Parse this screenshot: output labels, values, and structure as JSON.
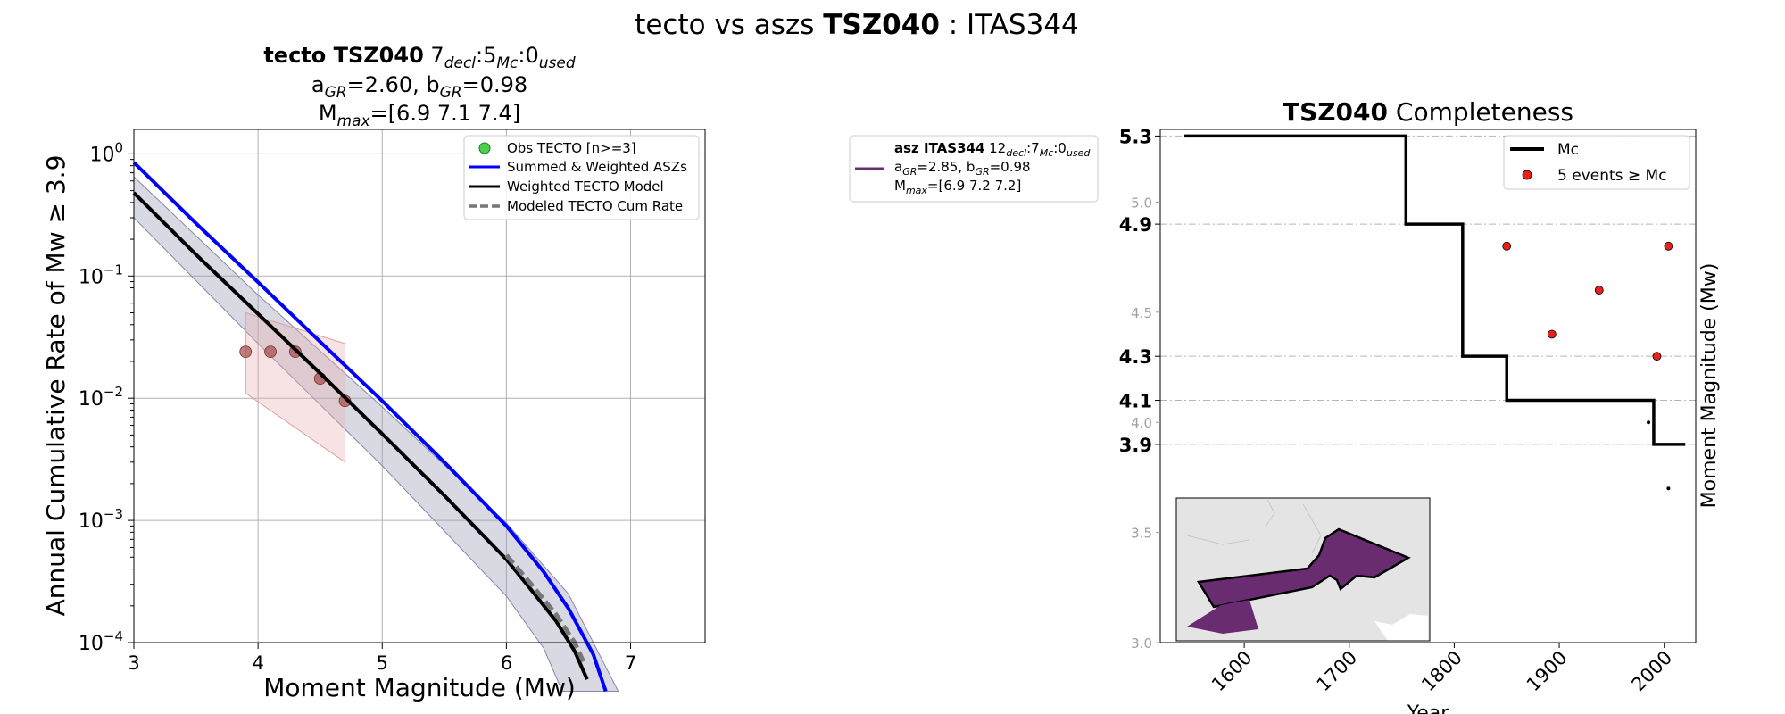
{
  "figure_title": {
    "pre": "tecto vs aszs ",
    "bold": "TSZ040",
    "post": " : ITAS344"
  },
  "chart_data": [
    {
      "type": "line",
      "title": {
        "line1_bold": "tecto TSZ040",
        "line1_a": "7",
        "line1_a_sub": "decl",
        "line1_b": ":5",
        "line1_b_sub": "Mc",
        "line1_c": ":0",
        "line1_c_sub": "used",
        "line2_a": "a",
        "line2_a_sub": "GR",
        "line2_a_val": "=2.60,  ",
        "line2_b": "b",
        "line2_b_sub": "GR",
        "line2_b_val": "=0.98",
        "line3": "M",
        "line3_sub": "max",
        "line3_val": "=[6.9 7.1 7.4]"
      },
      "xlabel": "Moment Magnitude (Mw)",
      "ylabel": "Annual Cumulative Rate of Mw ≥ 3.9",
      "xlim": [
        3,
        7.6
      ],
      "ylim_log10": [
        -4,
        0.2
      ],
      "x_ticks": [
        "3",
        "4",
        "5",
        "6",
        "7"
      ],
      "y_ticks": [
        {
          "base": "10",
          "exp": "0"
        },
        {
          "base": "10",
          "exp": "−1"
        },
        {
          "base": "10",
          "exp": "−2"
        },
        {
          "base": "10",
          "exp": "−3"
        },
        {
          "base": "10",
          "exp": "−4"
        }
      ],
      "grid": true,
      "legend_position": "top-right",
      "legend": [
        {
          "label": "Obs TECTO [n>=3]",
          "color": "#4cd04c",
          "kind": "marker"
        },
        {
          "label": "Summed & Weighted ASZs",
          "color": "#0000ff",
          "kind": "line"
        },
        {
          "label": "Weighted TECTO Model",
          "color": "#000000",
          "kind": "line"
        },
        {
          "label": "Modeled TECTO Cum Rate",
          "color": "#777777",
          "kind": "dash"
        }
      ],
      "series": [
        {
          "name": "Summed & Weighted ASZs",
          "color": "#0000ff",
          "x": [
            3.0,
            3.5,
            4.0,
            4.5,
            5.0,
            5.5,
            6.0,
            6.3,
            6.5,
            6.7,
            6.8
          ],
          "y": [
            0.85,
            0.27,
            0.089,
            0.029,
            0.0095,
            0.003,
            0.0009,
            0.00038,
            0.00019,
            8e-05,
            4e-05
          ]
        },
        {
          "name": "Weighted TECTO Model",
          "color": "#000000",
          "x": [
            3.0,
            3.5,
            4.0,
            4.5,
            5.0,
            5.5,
            6.0,
            6.2,
            6.4,
            6.55,
            6.65
          ],
          "y": [
            0.48,
            0.15,
            0.049,
            0.016,
            0.0051,
            0.0016,
            0.00048,
            0.00027,
            0.00015,
            8.5e-05,
            5e-05
          ]
        },
        {
          "name": "Modeled TECTO Cum Rate",
          "color": "#777777",
          "x": [
            6.0,
            6.2,
            6.4,
            6.55,
            6.62
          ],
          "y": [
            0.00052,
            0.0003,
            0.00017,
            0.0001,
            7e-05
          ]
        }
      ],
      "band_upper": {
        "x": [
          3.0,
          4.0,
          5.0,
          6.0,
          6.5,
          6.9
        ],
        "y": [
          0.65,
          0.07,
          0.0085,
          0.00095,
          0.00025,
          4e-05
        ]
      },
      "band_lower": {
        "x": [
          3.0,
          4.0,
          5.0,
          6.0,
          6.3,
          6.45
        ],
        "y": [
          0.3,
          0.028,
          0.0028,
          0.00024,
          9e-05,
          4e-05
        ]
      },
      "obs_points": {
        "x": [
          3.9,
          4.1,
          4.3,
          4.5,
          4.7
        ],
        "y": [
          0.024,
          0.024,
          0.024,
          0.0145,
          0.0095
        ]
      },
      "obs_band": {
        "x": [
          3.9,
          4.7,
          4.7,
          3.9
        ],
        "y": [
          0.05,
          0.028,
          0.003,
          0.011
        ]
      }
    },
    {
      "type": "legend_only",
      "entry": {
        "name_bold": "asz ITAS344",
        "a": " 12",
        "a_sub": "decl",
        "b": ":7",
        "b_sub": "Mc",
        "c": ":0",
        "c_sub": "used",
        "gr_a": "a",
        "gr_a_sub": "GR",
        "gr_a_val": "=2.85,  ",
        "gr_b": "b",
        "gr_b_sub": "GR",
        "gr_b_val": "=0.98",
        "mmax": "M",
        "mmax_sub": "max",
        "mmax_val": "=[6.9 7.2 7.2]",
        "color": "#6a2c70"
      }
    },
    {
      "type": "scatter",
      "title": {
        "bold": "TSZ040",
        "rest": " Completeness"
      },
      "xlabel": "Year",
      "ylabel": "Moment Magnitude (Mw)",
      "xlim": [
        1520,
        2030
      ],
      "ylim": [
        3.0,
        5.33
      ],
      "x_ticks": [
        "1600",
        "1700",
        "1800",
        "1900",
        "2000"
      ],
      "y_ticks_minor": [
        "3.0",
        "3.5",
        "4.0",
        "4.5",
        "5.0"
      ],
      "y_ticks_major": [
        "3.9",
        "4.1",
        "4.3",
        "4.9",
        "5.3"
      ],
      "legend_position": "top-right",
      "legend": [
        {
          "label": "Mc",
          "color": "#000000",
          "kind": "line"
        },
        {
          "label": "5 events ≥ Mc",
          "color": "#e8221a",
          "kind": "marker"
        }
      ],
      "mc_step": {
        "x": [
          1543,
          1754,
          1754,
          1808,
          1808,
          1850,
          1850,
          1990,
          1990,
          2020
        ],
        "y": [
          5.3,
          5.3,
          4.9,
          4.9,
          4.3,
          4.3,
          4.1,
          4.1,
          3.9,
          3.9
        ]
      },
      "events_above": {
        "x": [
          1850,
          1893,
          1938,
          1993,
          2004
        ],
        "y": [
          4.8,
          4.4,
          4.6,
          4.3,
          4.8
        ]
      },
      "events_below": {
        "x": [
          1985,
          2004
        ],
        "y": [
          4.0,
          3.7
        ]
      },
      "inset": {
        "land_color": "#e4e4e4",
        "zone_color": "#6a2c70"
      }
    }
  ]
}
